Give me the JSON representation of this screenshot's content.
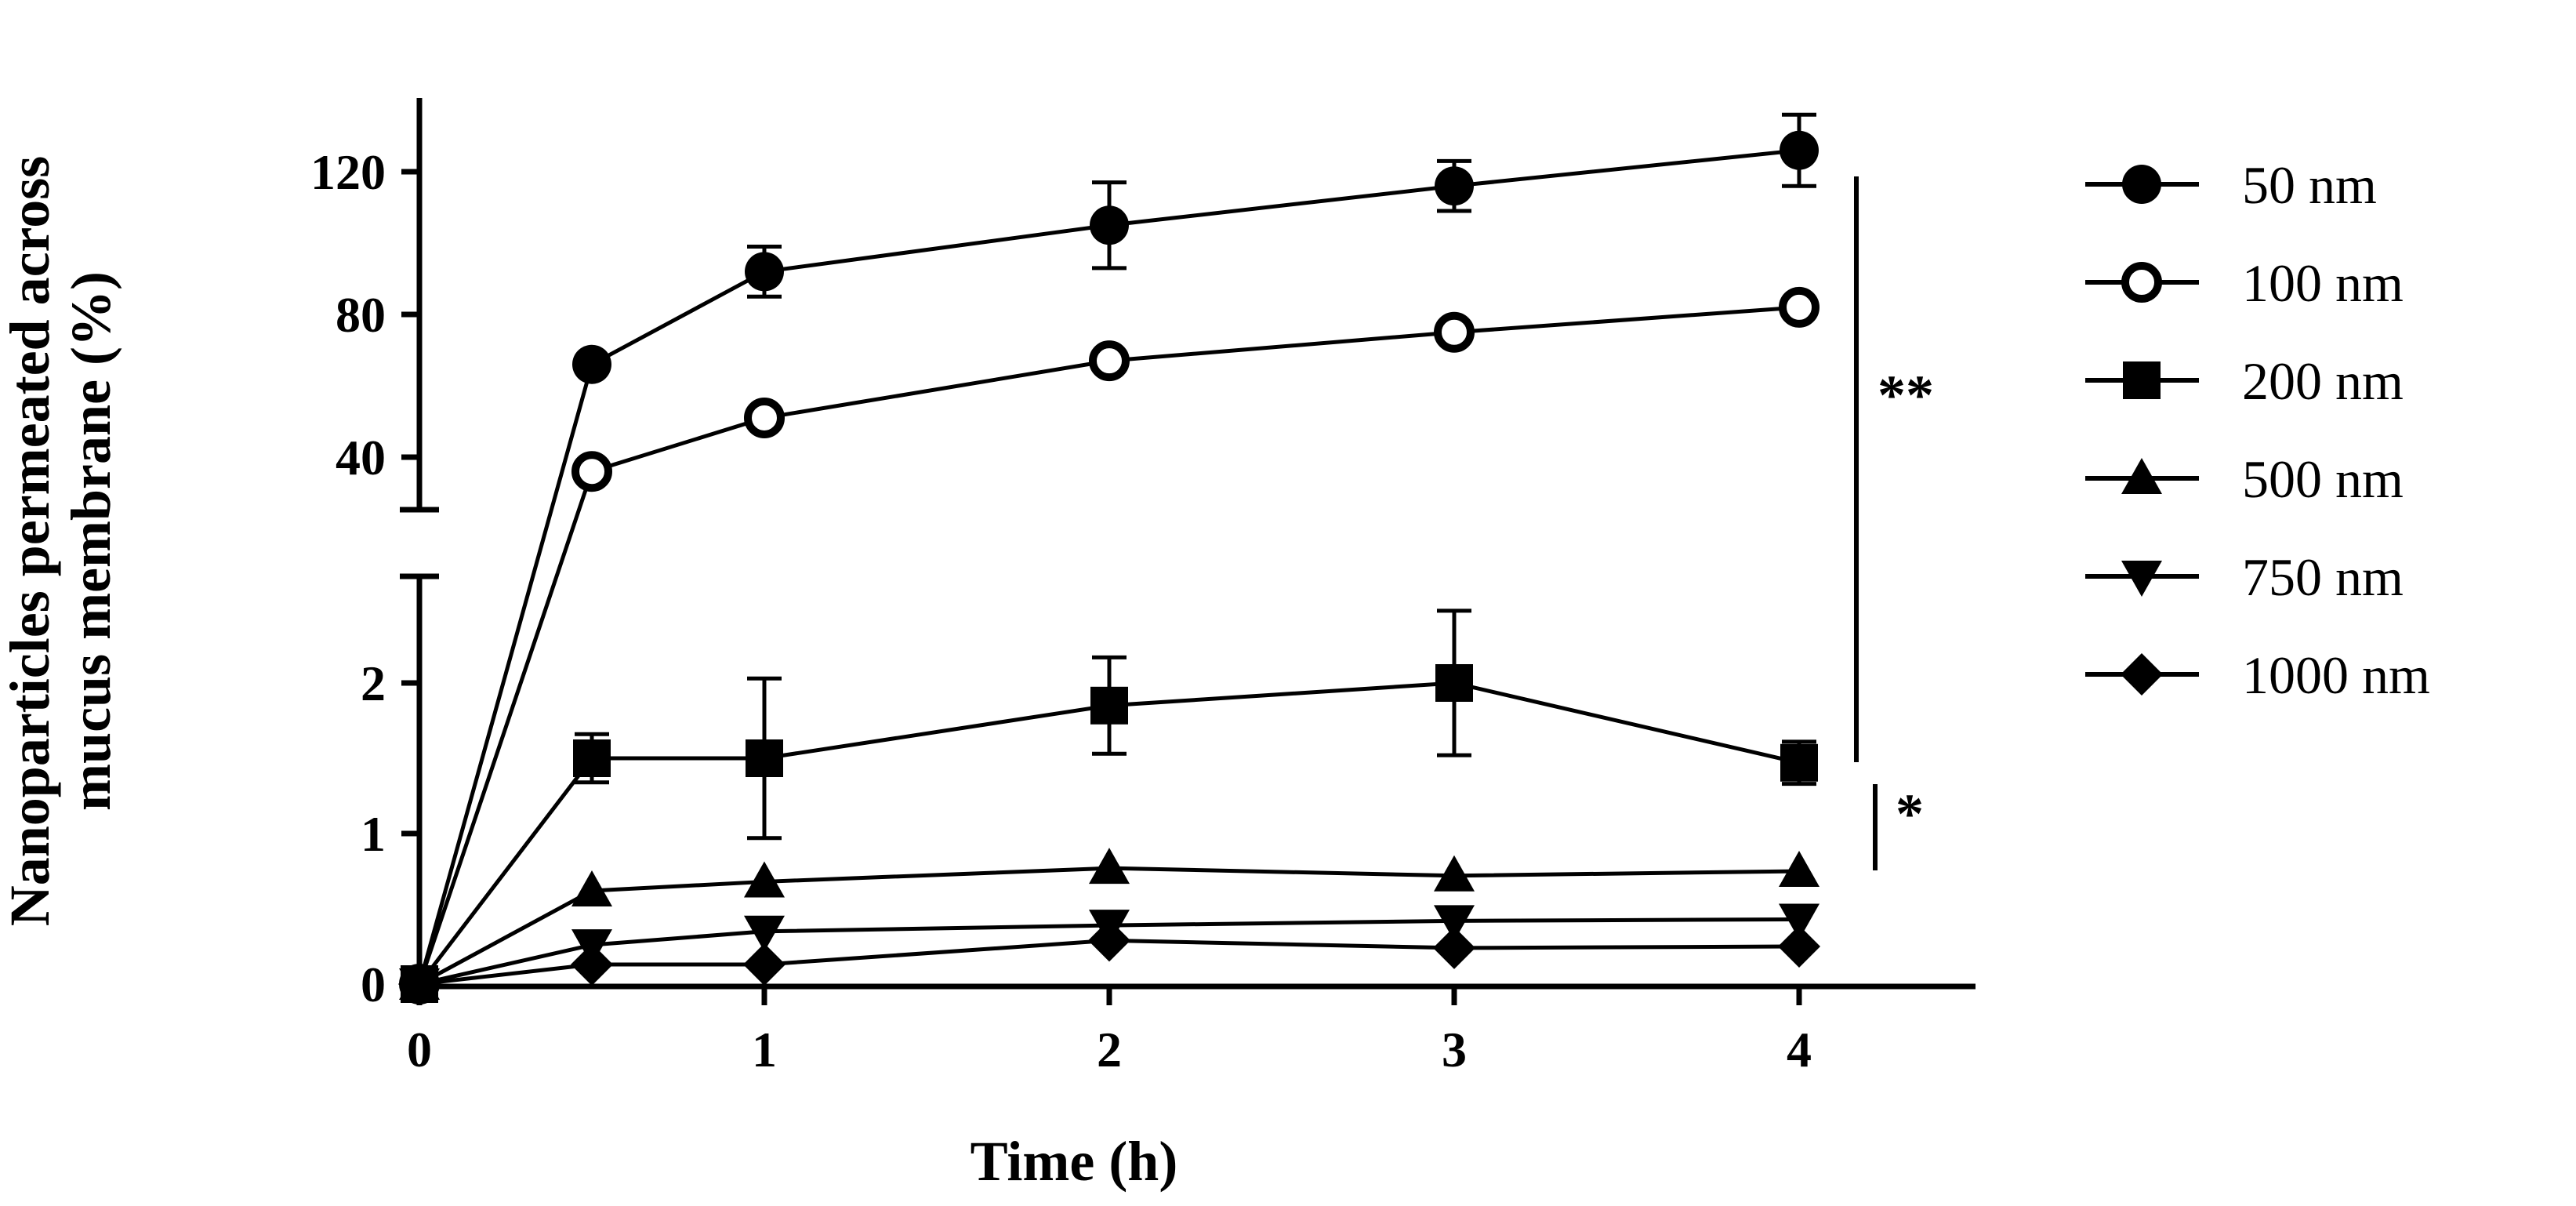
{
  "chart_data": {
    "type": "line",
    "title": "",
    "xlabel": "Time (h)",
    "ylabel_lines": [
      "Nanoparticles permeated across",
      "mucus membrane (%)"
    ],
    "x": [
      0,
      0.5,
      1,
      2,
      3,
      4
    ],
    "x_ticks": [
      "0",
      "1",
      "2",
      "3",
      "4"
    ],
    "y_upper_ticks": [
      "40",
      "80",
      "120"
    ],
    "y_lower_ticks": [
      "0",
      "1",
      "2"
    ],
    "y_axis_break": true,
    "series": [
      {
        "name": "50 nm",
        "marker": "circle-filled",
        "values": [
          0,
          66,
          92,
          105,
          116,
          126
        ],
        "errors": [
          0,
          3,
          7,
          12,
          7,
          10
        ]
      },
      {
        "name": "100 nm",
        "marker": "circle-open",
        "values": [
          0,
          36,
          51,
          67,
          75,
          82
        ],
        "errors": [
          0,
          2,
          3,
          2,
          2,
          2
        ]
      },
      {
        "name": "200 nm",
        "marker": "square",
        "values": [
          0,
          1.5,
          1.5,
          1.85,
          2.0,
          1.47
        ],
        "errors": [
          0,
          0.16,
          0.53,
          0.32,
          0.48,
          0.14
        ]
      },
      {
        "name": "500 nm",
        "marker": "triangle-up",
        "values": [
          0,
          0.62,
          0.68,
          0.77,
          0.72,
          0.75
        ],
        "errors": [
          0,
          0.03,
          0.03,
          0.03,
          0.03,
          0.03
        ]
      },
      {
        "name": "750 nm",
        "marker": "triangle-down",
        "values": [
          0,
          0.26,
          0.35,
          0.39,
          0.42,
          0.43
        ],
        "errors": [
          0,
          0.02,
          0.02,
          0.02,
          0.02,
          0.02
        ]
      },
      {
        "name": "1000 nm",
        "marker": "diamond",
        "values": [
          0,
          0.13,
          0.13,
          0.29,
          0.24,
          0.25
        ],
        "errors": [
          0,
          0.02,
          0.02,
          0.02,
          0.02,
          0.02
        ]
      }
    ],
    "annotations": [
      {
        "text": "**",
        "meaning": "significance bracket spanning 50 nm to 200 nm"
      },
      {
        "text": "*",
        "meaning": "significance bracket spanning 200 nm to 500 nm"
      }
    ]
  }
}
